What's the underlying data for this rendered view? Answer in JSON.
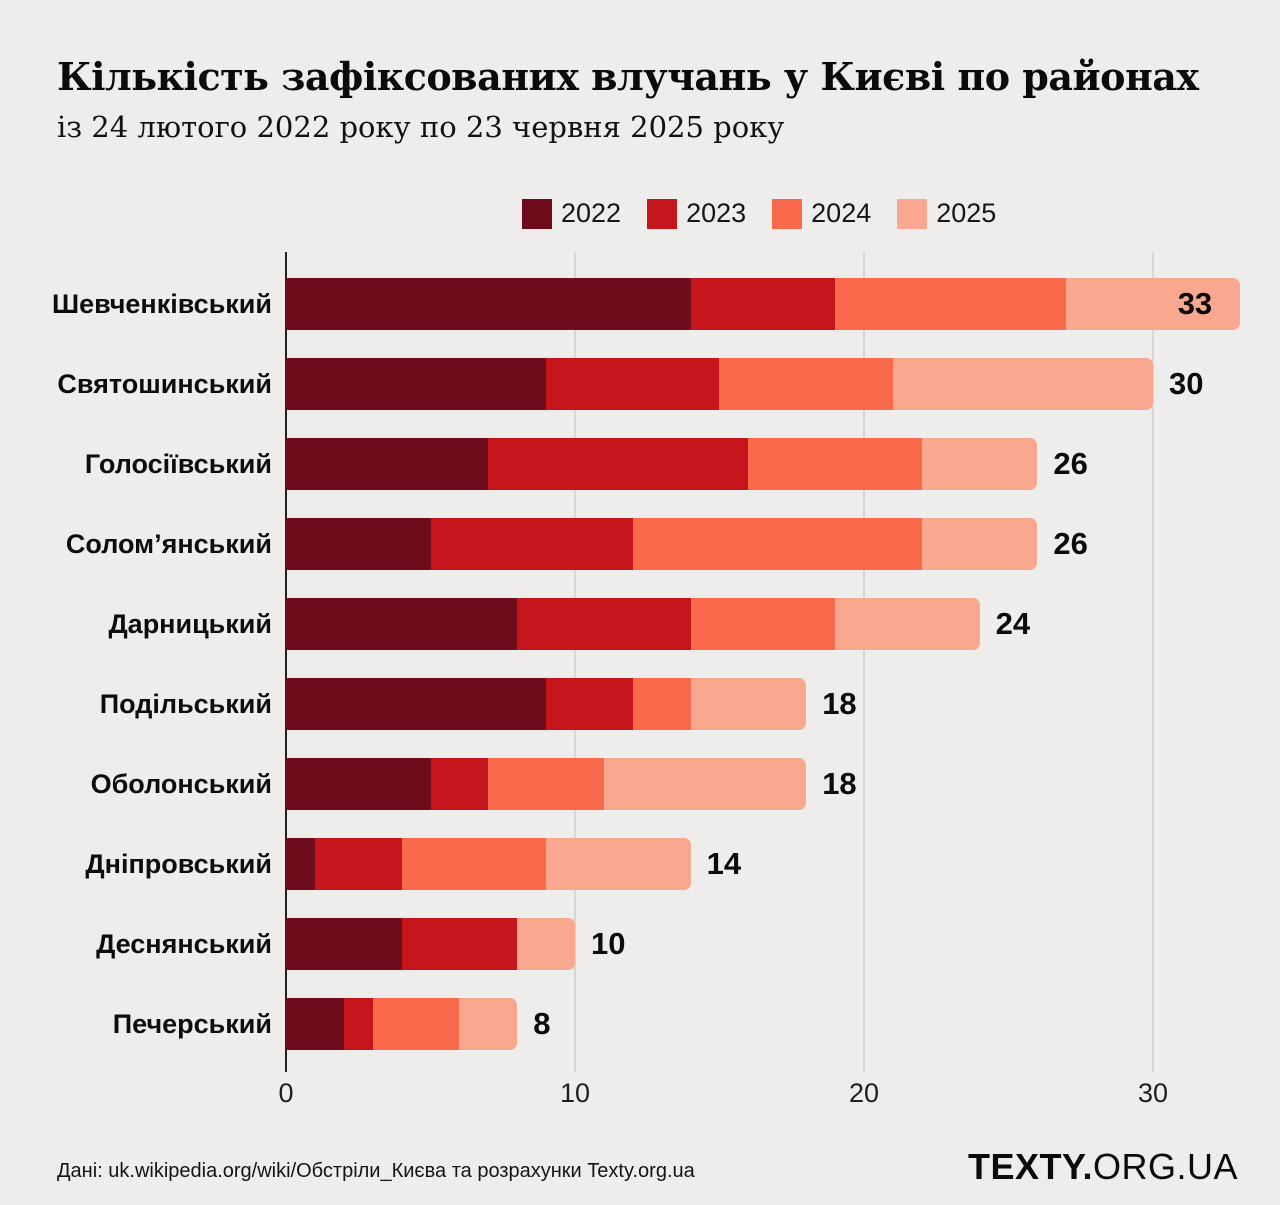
{
  "title": "Кількість зафіксованих влучань у Києві по районах",
  "subtitle": "із 24 лютого 2022 року по 23 червня 2025 року",
  "legend": [
    {
      "label": "2022",
      "color": "#6E0C1B"
    },
    {
      "label": "2023",
      "color": "#C4161C"
    },
    {
      "label": "2024",
      "color": "#F96A4C"
    },
    {
      "label": "2025",
      "color": "#F9A78E"
    }
  ],
  "chart_data": {
    "type": "bar",
    "orientation": "horizontal",
    "stacked": true,
    "title": "Кількість зафіксованих влучань у Києві по районах",
    "subtitle": "із 24 лютого 2022 року по 23 червня 2025 року",
    "categories": [
      "Шевченківський",
      "Святошинський",
      "Голосіївський",
      "Солом’янський",
      "Дарницький",
      "Подільський",
      "Оболонський",
      "Дніпровський",
      "Деснянський",
      "Печерський"
    ],
    "series": [
      {
        "name": "2022",
        "color": "#6E0C1B",
        "values": [
          14,
          9,
          7,
          5,
          8,
          9,
          5,
          1,
          4,
          2
        ]
      },
      {
        "name": "2023",
        "color": "#C4161C",
        "values": [
          5,
          6,
          9,
          7,
          6,
          3,
          2,
          3,
          4,
          1
        ]
      },
      {
        "name": "2024",
        "color": "#F96A4C",
        "values": [
          8,
          6,
          6,
          10,
          5,
          2,
          4,
          5,
          0,
          3
        ]
      },
      {
        "name": "2025",
        "color": "#F9A78E",
        "values": [
          6,
          9,
          4,
          4,
          5,
          4,
          7,
          5,
          2,
          2
        ]
      }
    ],
    "totals": [
      33,
      30,
      26,
      26,
      24,
      18,
      18,
      14,
      10,
      8
    ],
    "x_ticks": [
      0,
      10,
      20,
      30
    ],
    "xlim": [
      0,
      33
    ],
    "grid": "vertical",
    "legend_position": "top",
    "background": "#EEEDEB"
  },
  "footer": {
    "source": "Дані: uk.wikipedia.org/wiki/Обстріли_Києва та розрахунки Texty.org.ua",
    "logo_bold": "TEXTY.",
    "logo_rest": "ORG.UA"
  }
}
